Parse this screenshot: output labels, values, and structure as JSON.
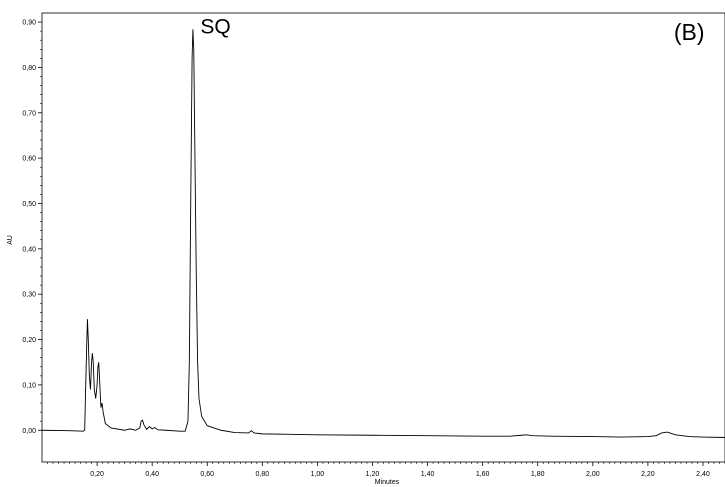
{
  "chart_data": {
    "type": "line",
    "title": "",
    "xlabel": "Minutes",
    "ylabel": "AU",
    "xlim": [
      0.0,
      2.48
    ],
    "ylim": [
      -0.07,
      0.92
    ],
    "grid": false,
    "x_ticks": [
      "0,20",
      "0,40",
      "0,60",
      "0,80",
      "1,00",
      "1,20",
      "1,40",
      "1,60",
      "1,80",
      "2,00",
      "2,20",
      "2,40"
    ],
    "x_tick_values": [
      0.2,
      0.4,
      0.6,
      0.8,
      1.0,
      1.2,
      1.4,
      1.6,
      1.8,
      2.0,
      2.2,
      2.4
    ],
    "y_ticks": [
      "0,00",
      "0,10",
      "0,20",
      "0,30",
      "0,40",
      "0,50",
      "0,60",
      "0,70",
      "0,80",
      "0,90"
    ],
    "y_tick_values": [
      0.0,
      0.1,
      0.2,
      0.3,
      0.4,
      0.5,
      0.6,
      0.7,
      0.8,
      0.9
    ],
    "annotations": [
      {
        "text": "SQ",
        "x": 0.63,
        "y": 0.875
      },
      {
        "text": "(B)",
        "x": 2.35,
        "y": 0.86
      }
    ],
    "series": [
      {
        "color": "#000000",
        "points": [
          [
            0.0,
            0.0
          ],
          [
            0.1,
            -0.001
          ],
          [
            0.15,
            -0.002
          ],
          [
            0.155,
            0.0
          ],
          [
            0.158,
            0.08
          ],
          [
            0.162,
            0.18
          ],
          [
            0.165,
            0.245
          ],
          [
            0.168,
            0.2
          ],
          [
            0.172,
            0.12
          ],
          [
            0.176,
            0.09
          ],
          [
            0.18,
            0.15
          ],
          [
            0.183,
            0.17
          ],
          [
            0.186,
            0.15
          ],
          [
            0.19,
            0.09
          ],
          [
            0.195,
            0.07
          ],
          [
            0.2,
            0.1
          ],
          [
            0.203,
            0.14
          ],
          [
            0.206,
            0.15
          ],
          [
            0.21,
            0.1
          ],
          [
            0.214,
            0.05
          ],
          [
            0.218,
            0.06
          ],
          [
            0.222,
            0.04
          ],
          [
            0.23,
            0.015
          ],
          [
            0.25,
            0.005
          ],
          [
            0.3,
            0.0
          ],
          [
            0.32,
            0.003
          ],
          [
            0.34,
            0.0
          ],
          [
            0.355,
            0.005
          ],
          [
            0.36,
            0.02
          ],
          [
            0.365,
            0.022
          ],
          [
            0.37,
            0.012
          ],
          [
            0.38,
            0.002
          ],
          [
            0.39,
            0.008
          ],
          [
            0.4,
            0.003
          ],
          [
            0.41,
            0.006
          ],
          [
            0.42,
            0.001
          ],
          [
            0.45,
            0.0
          ],
          [
            0.5,
            -0.002
          ],
          [
            0.52,
            -0.002
          ],
          [
            0.53,
            0.02
          ],
          [
            0.535,
            0.15
          ],
          [
            0.54,
            0.5
          ],
          [
            0.545,
            0.82
          ],
          [
            0.548,
            0.884
          ],
          [
            0.551,
            0.84
          ],
          [
            0.555,
            0.62
          ],
          [
            0.56,
            0.35
          ],
          [
            0.565,
            0.15
          ],
          [
            0.57,
            0.07
          ],
          [
            0.58,
            0.03
          ],
          [
            0.6,
            0.01
          ],
          [
            0.65,
            0.0
          ],
          [
            0.7,
            -0.005
          ],
          [
            0.75,
            -0.006
          ],
          [
            0.76,
            -0.001
          ],
          [
            0.77,
            -0.006
          ],
          [
            0.8,
            -0.008
          ],
          [
            0.9,
            -0.009
          ],
          [
            1.0,
            -0.01
          ],
          [
            1.2,
            -0.011
          ],
          [
            1.4,
            -0.012
          ],
          [
            1.6,
            -0.013
          ],
          [
            1.7,
            -0.013
          ],
          [
            1.74,
            -0.011
          ],
          [
            1.76,
            -0.01
          ],
          [
            1.78,
            -0.012
          ],
          [
            1.85,
            -0.013
          ],
          [
            2.0,
            -0.014
          ],
          [
            2.1,
            -0.015
          ],
          [
            2.2,
            -0.014
          ],
          [
            2.23,
            -0.012
          ],
          [
            2.25,
            -0.006
          ],
          [
            2.27,
            -0.004
          ],
          [
            2.3,
            -0.01
          ],
          [
            2.35,
            -0.014
          ],
          [
            2.4,
            -0.015
          ],
          [
            2.48,
            -0.016
          ]
        ]
      }
    ]
  }
}
